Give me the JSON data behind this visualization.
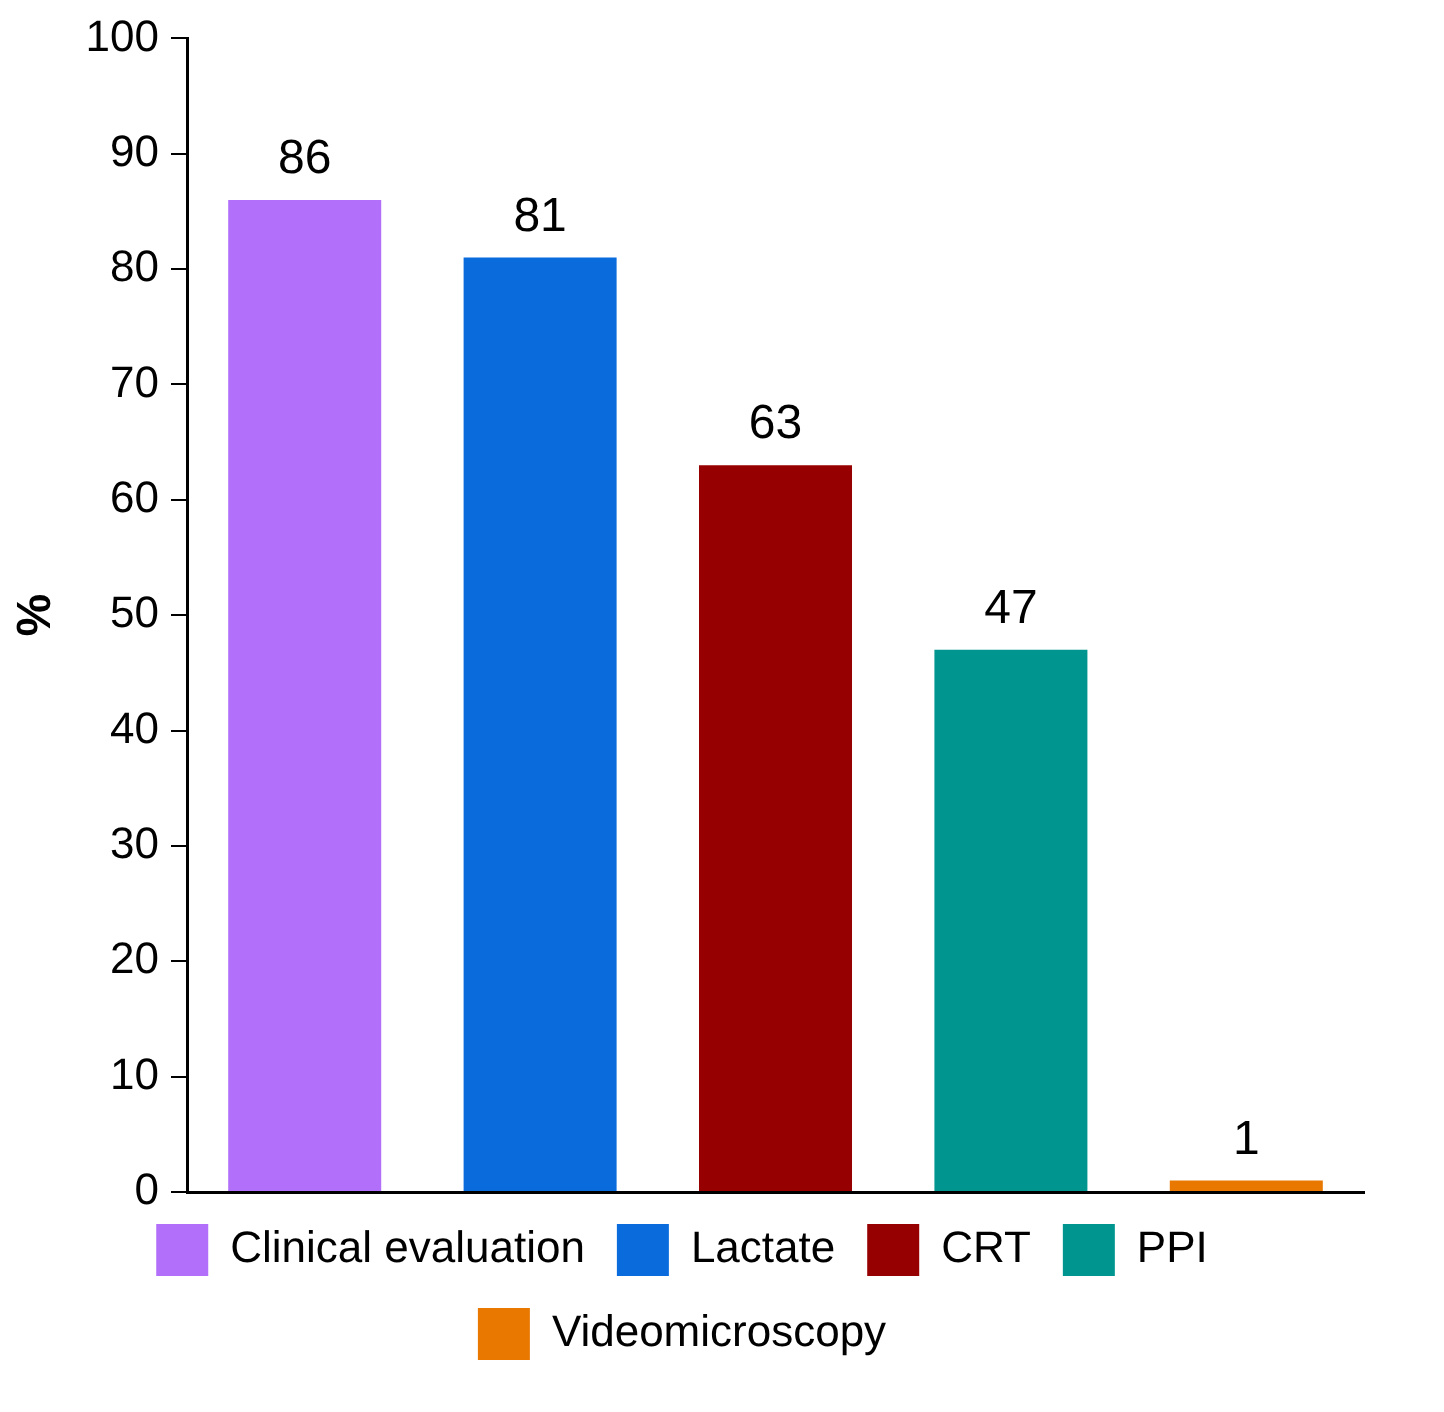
{
  "chart_data": {
    "type": "bar",
    "ylabel": "%",
    "categories": [
      null,
      null,
      null,
      null,
      null
    ],
    "series": [
      {
        "name": "Clinical evaluation",
        "color": "#b26ff9",
        "values": [
          86,
          null,
          null,
          null,
          null
        ]
      },
      {
        "name": "Lactate",
        "color": "#0a6bdc",
        "values": [
          null,
          81,
          null,
          null,
          null
        ]
      },
      {
        "name": "CRT",
        "color": "#960000",
        "values": [
          null,
          null,
          63,
          null,
          null
        ]
      },
      {
        "name": "PPI",
        "color": "#00968f",
        "values": [
          null,
          null,
          null,
          47,
          null
        ]
      },
      {
        "name": "Videomicroscopy",
        "color": "#e87800",
        "values": [
          null,
          null,
          null,
          null,
          1
        ]
      }
    ],
    "ylim": [
      0,
      100
    ],
    "yticks": [
      0,
      10,
      20,
      30,
      40,
      50,
      60,
      70,
      80,
      90,
      100
    ],
    "grid": false,
    "legend": "bottom",
    "tick_labels": "y",
    "data_labels": true
  }
}
